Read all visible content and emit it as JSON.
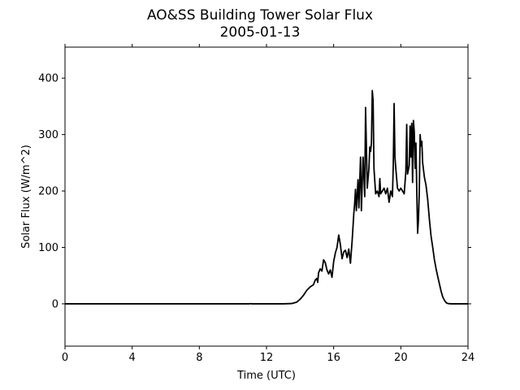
{
  "chart_data": {
    "type": "line",
    "title": "AO&SS Building Tower Solar Flux",
    "subtitle": "2005-01-13",
    "xlabel": "Time (UTC)",
    "ylabel": "Solar Flux (W/m^2)",
    "xlim": [
      0,
      24
    ],
    "ylim": [
      -75,
      455
    ],
    "xticks": [
      0,
      4,
      8,
      12,
      16,
      20,
      24
    ],
    "yticks": [
      0,
      100,
      200,
      300,
      400
    ],
    "grid": false,
    "series": [
      {
        "color": "#000000",
        "points": [
          [
            0,
            0
          ],
          [
            11,
            0
          ],
          [
            11.05,
            0.5
          ],
          [
            11.1,
            0
          ],
          [
            13,
            0
          ],
          [
            13.5,
            0.5
          ],
          [
            13.8,
            3
          ],
          [
            14,
            8
          ],
          [
            14.2,
            15
          ],
          [
            14.4,
            24
          ],
          [
            14.6,
            30
          ],
          [
            14.8,
            34
          ],
          [
            14.9,
            42
          ],
          [
            15.0,
            45
          ],
          [
            15.05,
            38
          ],
          [
            15.1,
            55
          ],
          [
            15.2,
            62
          ],
          [
            15.3,
            58
          ],
          [
            15.4,
            78
          ],
          [
            15.5,
            73
          ],
          [
            15.6,
            60
          ],
          [
            15.7,
            53
          ],
          [
            15.8,
            60
          ],
          [
            15.9,
            47
          ],
          [
            16.0,
            75
          ],
          [
            16.1,
            90
          ],
          [
            16.2,
            100
          ],
          [
            16.3,
            122
          ],
          [
            16.4,
            105
          ],
          [
            16.5,
            80
          ],
          [
            16.6,
            92
          ],
          [
            16.7,
            95
          ],
          [
            16.8,
            82
          ],
          [
            16.9,
            97
          ],
          [
            17.0,
            72
          ],
          [
            17.1,
            112
          ],
          [
            17.2,
            160
          ],
          [
            17.25,
            178
          ],
          [
            17.3,
            203
          ],
          [
            17.35,
            165
          ],
          [
            17.45,
            220
          ],
          [
            17.5,
            170
          ],
          [
            17.6,
            260
          ],
          [
            17.65,
            165
          ],
          [
            17.75,
            260
          ],
          [
            17.85,
            190
          ],
          [
            17.9,
            348
          ],
          [
            18.0,
            205
          ],
          [
            18.1,
            240
          ],
          [
            18.15,
            278
          ],
          [
            18.2,
            270
          ],
          [
            18.25,
            285
          ],
          [
            18.3,
            378
          ],
          [
            18.35,
            360
          ],
          [
            18.4,
            240
          ],
          [
            18.5,
            195
          ],
          [
            18.6,
            200
          ],
          [
            18.7,
            190
          ],
          [
            18.75,
            222
          ],
          [
            18.8,
            195
          ],
          [
            18.9,
            200
          ],
          [
            19.0,
            205
          ],
          [
            19.1,
            195
          ],
          [
            19.2,
            205
          ],
          [
            19.3,
            180
          ],
          [
            19.4,
            200
          ],
          [
            19.5,
            190
          ],
          [
            19.55,
            245
          ],
          [
            19.6,
            355
          ],
          [
            19.65,
            260
          ],
          [
            19.7,
            240
          ],
          [
            19.8,
            205
          ],
          [
            19.9,
            200
          ],
          [
            20.0,
            205
          ],
          [
            20.1,
            200
          ],
          [
            20.2,
            195
          ],
          [
            20.3,
            235
          ],
          [
            20.35,
            318
          ],
          [
            20.4,
            230
          ],
          [
            20.5,
            245
          ],
          [
            20.55,
            315
          ],
          [
            20.6,
            260
          ],
          [
            20.65,
            320
          ],
          [
            20.7,
            215
          ],
          [
            20.75,
            325
          ],
          [
            20.8,
            305
          ],
          [
            20.85,
            240
          ],
          [
            20.9,
            285
          ],
          [
            20.95,
            200
          ],
          [
            21.0,
            125
          ],
          [
            21.05,
            150
          ],
          [
            21.1,
            200
          ],
          [
            21.15,
            300
          ],
          [
            21.2,
            280
          ],
          [
            21.25,
            288
          ],
          [
            21.3,
            250
          ],
          [
            21.4,
            225
          ],
          [
            21.5,
            210
          ],
          [
            21.6,
            185
          ],
          [
            21.7,
            150
          ],
          [
            21.8,
            120
          ],
          [
            21.9,
            100
          ],
          [
            22.0,
            78
          ],
          [
            22.1,
            62
          ],
          [
            22.2,
            48
          ],
          [
            22.3,
            35
          ],
          [
            22.4,
            22
          ],
          [
            22.5,
            12
          ],
          [
            22.6,
            6
          ],
          [
            22.7,
            2
          ],
          [
            22.8,
            0.5
          ],
          [
            23.0,
            0
          ],
          [
            24,
            0
          ]
        ]
      }
    ]
  }
}
